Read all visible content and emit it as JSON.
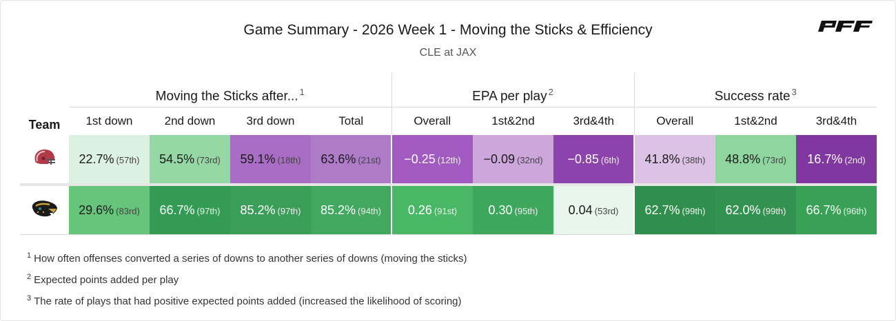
{
  "header": {
    "title": "Game Summary - 2026 Week 1 - Moving the Sticks & Efficiency",
    "subtitle": "CLE at JAX",
    "logo_text": "PFF"
  },
  "table": {
    "team_header": "Team",
    "groups": [
      {
        "label": "Moving the Sticks after...",
        "note": "1"
      },
      {
        "label": "EPA per play",
        "note": "2"
      },
      {
        "label": "Success rate",
        "note": "3"
      }
    ],
    "columns": [
      "1st down",
      "2nd down",
      "3rd down",
      "Total",
      "Overall",
      "1st&2nd",
      "3rd&4th",
      "Overall",
      "1st&2nd",
      "3rd&4th"
    ],
    "rows": [
      {
        "team": "CLE",
        "icon": "browns-helmet-icon",
        "cells": [
          {
            "value": "22.7%",
            "rank": "(57th)",
            "bg": "#dcf1e1",
            "dark": false
          },
          {
            "value": "54.5%",
            "rank": "(73rd)",
            "bg": "#95d7a5",
            "dark": false
          },
          {
            "value": "59.1%",
            "rank": "(18th)",
            "bg": "#a96dc6",
            "dark": false
          },
          {
            "value": "63.6%",
            "rank": "(21st)",
            "bg": "#ae7bc9",
            "dark": false
          },
          {
            "value": "−0.25",
            "rank": "(12th)",
            "bg": "#a15ac0",
            "dark": true
          },
          {
            "value": "−0.09",
            "rank": "(32nd)",
            "bg": "#cda6db",
            "dark": false
          },
          {
            "value": "−0.85",
            "rank": "(6th)",
            "bg": "#8c43ab",
            "dark": true
          },
          {
            "value": "41.8%",
            "rank": "(38th)",
            "bg": "#dcc3e6",
            "dark": false
          },
          {
            "value": "48.8%",
            "rank": "(73rd)",
            "bg": "#8fd59f",
            "dark": false
          },
          {
            "value": "16.7%",
            "rank": "(2nd)",
            "bg": "#80379f",
            "dark": true
          }
        ]
      },
      {
        "team": "JAX",
        "icon": "jaguar-head-icon",
        "cells": [
          {
            "value": "29.6%",
            "rank": "(83rd)",
            "bg": "#66c47b",
            "dark": false
          },
          {
            "value": "66.7%",
            "rank": "(97th)",
            "bg": "#349b54",
            "dark": true
          },
          {
            "value": "85.2%",
            "rank": "(97th)",
            "bg": "#3a9e59",
            "dark": true
          },
          {
            "value": "85.2%",
            "rank": "(94th)",
            "bg": "#43a85f",
            "dark": true
          },
          {
            "value": "0.26",
            "rank": "(91st)",
            "bg": "#4ab767",
            "dark": true
          },
          {
            "value": "0.30",
            "rank": "(95th)",
            "bg": "#3da75c",
            "dark": true
          },
          {
            "value": "0.04",
            "rank": "(53rd)",
            "bg": "#e8f6ec",
            "dark": false
          },
          {
            "value": "62.7%",
            "rank": "(99th)",
            "bg": "#318f4e",
            "dark": true
          },
          {
            "value": "62.0%",
            "rank": "(99th)",
            "bg": "#329250",
            "dark": true
          },
          {
            "value": "66.7%",
            "rank": "(96th)",
            "bg": "#38a156",
            "dark": true
          }
        ]
      }
    ]
  },
  "notes": [
    {
      "num": "1",
      "text": "How often offenses converted a series of downs to another series of downs (moving the sticks)"
    },
    {
      "num": "2",
      "text": "Expected points added per play"
    },
    {
      "num": "3",
      "text": "The rate of plays that had positive expected points added (increased the likelihood of scoring)"
    }
  ]
}
